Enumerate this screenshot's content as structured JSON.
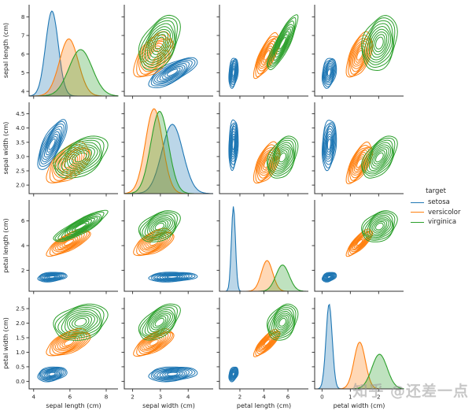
{
  "figure": {
    "watermark": "知乎 @还差一点"
  },
  "legend": {
    "title": "target",
    "entries": [
      {
        "label": "setosa",
        "color": "#1f77b4"
      },
      {
        "label": "versicolor",
        "color": "#ff7f0e"
      },
      {
        "label": "virginica",
        "color": "#2ca02c"
      }
    ]
  },
  "chart_data": {
    "type": "kde-pairplot",
    "grid": false,
    "legend_position": "right-center",
    "contour_levels": 9,
    "diag_fill_opacity": 0.3,
    "variables": [
      {
        "label": "sepal length (cm)",
        "range": [
          3.75,
          8.65
        ],
        "y_ticks": {
          "values": [
            4,
            5,
            6,
            7,
            8
          ],
          "labels": [
            "4",
            "5",
            "6",
            "7",
            "8"
          ]
        },
        "x_ticks": {
          "values": [
            4,
            6,
            8
          ],
          "labels": [
            "4",
            "6",
            "8"
          ]
        }
      },
      {
        "label": "sepal width (cm)",
        "range": [
          1.7,
          4.9
        ],
        "y_ticks": {
          "values": [
            2.0,
            2.5,
            3.0,
            3.5,
            4.0,
            4.5
          ],
          "labels": [
            "2.0",
            "2.5",
            "3.0",
            "3.5",
            "4.0",
            "4.5"
          ]
        },
        "x_ticks": {
          "values": [
            2,
            3,
            4
          ],
          "labels": [
            "2",
            "3",
            "4"
          ]
        }
      },
      {
        "label": "petal length (cm)",
        "range": [
          0.3,
          7.7
        ],
        "y_ticks": {
          "values": [
            2,
            4,
            6
          ],
          "labels": [
            "2",
            "4",
            "6"
          ]
        },
        "x_ticks": {
          "values": [
            2,
            4,
            6
          ],
          "labels": [
            "2",
            "4",
            "6"
          ]
        }
      },
      {
        "label": "petal width (cm)",
        "range": [
          -0.26,
          2.88
        ],
        "y_ticks": {
          "values": [
            0.0,
            0.5,
            1.0,
            1.5,
            2.0,
            2.5
          ],
          "labels": [
            "0.0",
            "0.5",
            "1.0",
            "1.5",
            "2.0",
            "2.5"
          ]
        },
        "x_ticks": {
          "values": [
            0,
            1,
            2
          ],
          "labels": [
            "0",
            "1",
            "2"
          ]
        }
      }
    ],
    "series": [
      {
        "name": "setosa",
        "color": "#1f77b4",
        "mean": [
          5.01,
          3.43,
          1.46,
          0.25
        ],
        "std": [
          0.35,
          0.38,
          0.17,
          0.11
        ],
        "corr": [
          [
            1,
            0.74,
            0.27,
            0.28
          ],
          [
            0.74,
            1,
            0.18,
            0.23
          ],
          [
            0.27,
            0.18,
            1,
            0.33
          ],
          [
            0.28,
            0.23,
            0.33,
            1
          ]
        ]
      },
      {
        "name": "versicolor",
        "color": "#ff7f0e",
        "mean": [
          5.94,
          2.77,
          4.26,
          1.33
        ],
        "std": [
          0.52,
          0.31,
          0.47,
          0.2
        ],
        "corr": [
          [
            1,
            0.53,
            0.75,
            0.55
          ],
          [
            0.53,
            1,
            0.56,
            0.66
          ],
          [
            0.75,
            0.56,
            1,
            0.79
          ],
          [
            0.55,
            0.66,
            0.79,
            1
          ]
        ]
      },
      {
        "name": "virginica",
        "color": "#2ca02c",
        "mean": [
          6.59,
          2.97,
          5.55,
          2.03
        ],
        "std": [
          0.64,
          0.32,
          0.55,
          0.27
        ],
        "corr": [
          [
            1,
            0.46,
            0.86,
            0.28
          ],
          [
            0.46,
            1,
            0.4,
            0.54
          ],
          [
            0.86,
            0.4,
            1,
            0.32
          ],
          [
            0.28,
            0.54,
            0.32,
            1
          ]
        ]
      }
    ]
  }
}
